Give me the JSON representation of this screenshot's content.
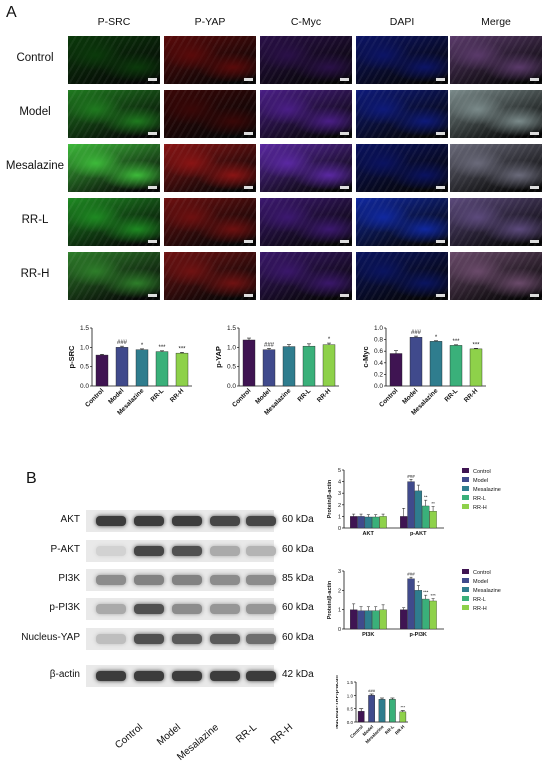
{
  "panel_a_label": "A",
  "panel_b_label": "B",
  "if_columns": [
    "P-SRC",
    "P-YAP",
    "C-Myc",
    "DAPI",
    "Merge"
  ],
  "if_rows": [
    "Control",
    "Model",
    "Mesalazine",
    "RR-L",
    "RR-H"
  ],
  "if_colors": {
    "P-SRC": [
      "#0b3a0b",
      "#1f7a1f",
      "#3dba3a",
      "#1e8a22",
      "#2e7e2a"
    ],
    "P-YAP": [
      "#5a0a0a",
      "#3a0707",
      "#8a1414",
      "#6e1010",
      "#701212"
    ],
    "C-Myc": [
      "#2a1048",
      "#4a1e86",
      "#5a28a2",
      "#3c1870",
      "#3a176a"
    ],
    "DAPI": [
      "#0c1466",
      "#0e1a7a",
      "#0a1260",
      "#1028a0",
      "#0a1460"
    ],
    "Merge": [
      "#5a3a6a",
      "#7a8a8a",
      "#6a6a7a",
      "#5c4a7c",
      "#6a4a6a"
    ]
  },
  "chart_data": [
    {
      "type": "bar",
      "categories": [
        "Control",
        "Model",
        "Mesalazine",
        "RR-L",
        "RR-H"
      ],
      "values": [
        0.8,
        1.0,
        0.94,
        0.89,
        0.85
      ],
      "errors": [
        0.02,
        0.03,
        0.02,
        0.02,
        0.02
      ],
      "colors": [
        "#3f1452",
        "#404a8c",
        "#2f7d8e",
        "#3ab07a",
        "#8ed14a"
      ],
      "annotations": [
        "",
        "###",
        "*",
        "***",
        "***"
      ],
      "ylabel": "p-SRC",
      "ylim": [
        0,
        1.5
      ],
      "yticks": [
        "0.0",
        "0.5",
        "1.0",
        "1.5"
      ]
    },
    {
      "type": "bar",
      "categories": [
        "Control",
        "Model",
        "Mesalazine",
        "RR-L",
        "RR-H"
      ],
      "values": [
        1.19,
        0.94,
        1.02,
        1.03,
        1.07
      ],
      "errors": [
        0.05,
        0.03,
        0.05,
        0.06,
        0.04
      ],
      "colors": [
        "#3f1452",
        "#404a8c",
        "#2f7d8e",
        "#3ab07a",
        "#8ed14a"
      ],
      "annotations": [
        "",
        "###",
        "",
        "",
        "*"
      ],
      "ylabel": "p-YAP",
      "ylim": [
        0,
        1.5
      ],
      "yticks": [
        "0.0",
        "0.5",
        "1.0",
        "1.5"
      ]
    },
    {
      "type": "bar",
      "categories": [
        "Control",
        "Model",
        "Mesalazine",
        "RR-L",
        "RR-H"
      ],
      "values": [
        0.56,
        0.84,
        0.77,
        0.7,
        0.64
      ],
      "errors": [
        0.05,
        0.02,
        0.01,
        0.01,
        0.01
      ],
      "colors": [
        "#3f1452",
        "#404a8c",
        "#2f7d8e",
        "#3ab07a",
        "#8ed14a"
      ],
      "annotations": [
        "",
        "###",
        "*",
        "***",
        "***"
      ],
      "ylabel": "c-Myc",
      "ylim": [
        0,
        1.0
      ],
      "yticks": [
        "0.0",
        "0.2",
        "0.4",
        "0.6",
        "0.8",
        "1.0"
      ]
    },
    {
      "type": "bar",
      "groups": [
        "AKT",
        "p-AKT"
      ],
      "series_names": [
        "Control",
        "Model",
        "Mesalazine",
        "RR-L",
        "RR-H"
      ],
      "values": [
        [
          1.0,
          1.0,
          0.95,
          0.95,
          1.0
        ],
        [
          1.0,
          4.0,
          3.2,
          1.9,
          1.45
        ]
      ],
      "errors": [
        [
          0.2,
          0.2,
          0.2,
          0.2,
          0.2
        ],
        [
          0.7,
          0.2,
          0.5,
          0.5,
          0.4
        ]
      ],
      "annotations": [
        [
          "",
          "",
          "",
          "",
          ""
        ],
        [
          "",
          "###",
          "",
          "**",
          "**"
        ]
      ],
      "colors": [
        "#3f1452",
        "#404a8c",
        "#2f7d8e",
        "#3ab07a",
        "#8ed14a"
      ],
      "ylabel": "Protein/β-actin",
      "ylim": [
        0,
        5
      ],
      "yticks": [
        "0",
        "1",
        "2",
        "3",
        "4",
        "5"
      ]
    },
    {
      "type": "bar",
      "groups": [
        "PI3K",
        "p-PI3K"
      ],
      "series_names": [
        "Control",
        "Model",
        "Mesalazine",
        "RR-L",
        "RR-H"
      ],
      "values": [
        [
          1.0,
          0.95,
          0.95,
          0.95,
          1.0
        ],
        [
          1.0,
          2.6,
          2.0,
          1.55,
          1.45
        ]
      ],
      "errors": [
        [
          0.3,
          0.2,
          0.2,
          0.2,
          0.25
        ],
        [
          0.1,
          0.08,
          0.25,
          0.2,
          0.12
        ]
      ],
      "annotations": [
        [
          "",
          "",
          "",
          "",
          ""
        ],
        [
          "",
          "###",
          "*",
          "***",
          "***"
        ]
      ],
      "colors": [
        "#3f1452",
        "#404a8c",
        "#2f7d8e",
        "#3ab07a",
        "#8ed14a"
      ],
      "ylabel": "Protein/β-actin",
      "ylim": [
        0,
        3
      ],
      "yticks": [
        "0",
        "1",
        "2",
        "3"
      ]
    },
    {
      "type": "bar",
      "categories": [
        "Control",
        "Model",
        "Mesalazine",
        "RR-L",
        "RR-H"
      ],
      "values": [
        0.4,
        1.0,
        0.85,
        0.85,
        0.38
      ],
      "errors": [
        0.1,
        0.05,
        0.05,
        0.05,
        0.05
      ],
      "colors": [
        "#3f1452",
        "#404a8c",
        "#2f7d8e",
        "#3ab07a",
        "#8ed14a"
      ],
      "annotations": [
        "",
        "###",
        "",
        "",
        "***"
      ],
      "ylabel": "Nucleus-YAP/β-actin",
      "ylim": [
        0,
        1.5
      ],
      "yticks": [
        "0.0",
        "0.5",
        "1.0",
        "1.5"
      ]
    }
  ],
  "legend": [
    "Control",
    "Model",
    "Mesalazine",
    "RR-L",
    "RR-H"
  ],
  "western_blot": {
    "rows": [
      {
        "label": "AKT",
        "kda": "60 kDa",
        "intensity": [
          0.85,
          0.85,
          0.85,
          0.8,
          0.8
        ]
      },
      {
        "label": "P-AKT",
        "kda": "60 kDa",
        "intensity": [
          0.1,
          0.8,
          0.75,
          0.3,
          0.25
        ]
      },
      {
        "label": "PI3K",
        "kda": "85 kDa",
        "intensity": [
          0.45,
          0.5,
          0.5,
          0.45,
          0.45
        ]
      },
      {
        "label": "p-PI3K",
        "kda": "60 kDa",
        "intensity": [
          0.3,
          0.75,
          0.45,
          0.4,
          0.4
        ]
      },
      {
        "label": "Nucleus-YAP",
        "kda": "60 kDa",
        "intensity": [
          0.2,
          0.75,
          0.7,
          0.7,
          0.6
        ]
      },
      {
        "label": "β-actin",
        "kda": "42 kDa",
        "intensity": [
          0.85,
          0.85,
          0.85,
          0.85,
          0.85
        ]
      }
    ],
    "lanes": [
      "Control",
      "Model",
      "Mesalazine",
      "RR-L",
      "RR-H"
    ]
  }
}
